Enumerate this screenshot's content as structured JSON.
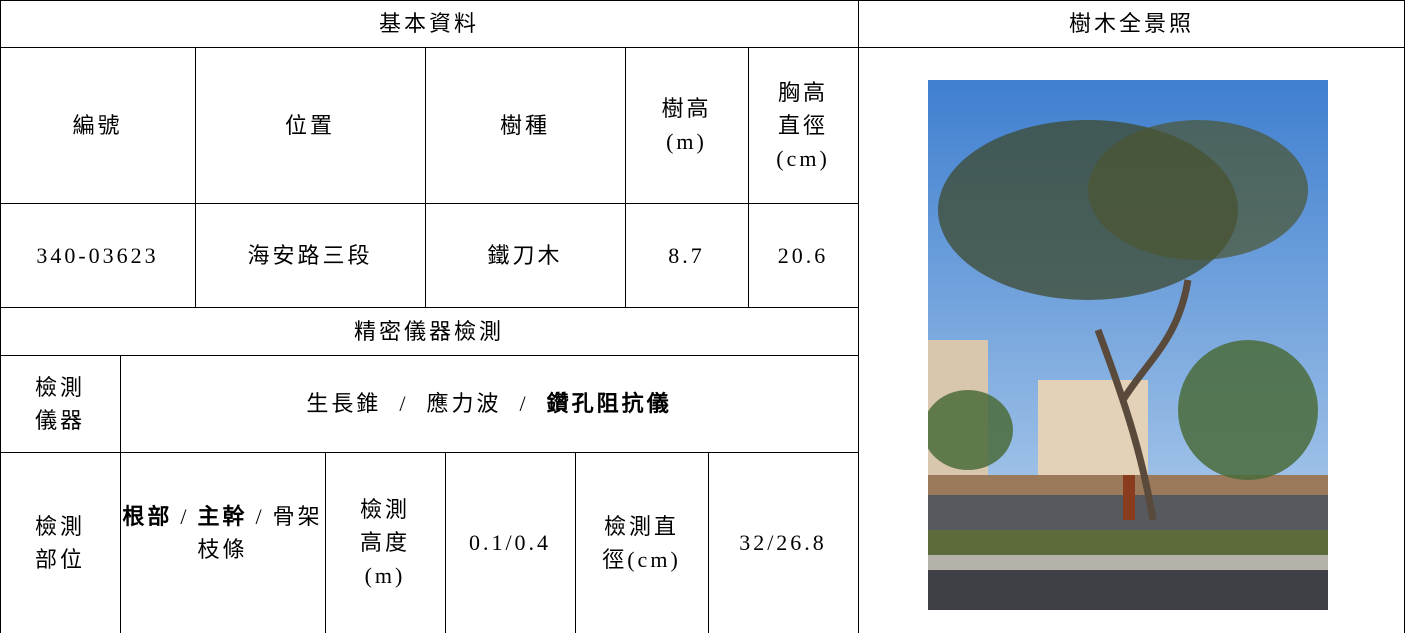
{
  "header": {
    "basic_info": "基本資料",
    "photo_title": "樹木全景照"
  },
  "basic": {
    "columns": [
      "編號",
      "位置",
      "樹種",
      "樹高\n(m)",
      "胸高\n直徑\n(cm)"
    ],
    "row": [
      "340-03623",
      "海安路三段",
      "鐵刀木",
      "8.7",
      "20.6"
    ]
  },
  "inspection": {
    "title": "精密儀器檢測",
    "instrument_label": "檢測\n儀器",
    "instruments": [
      "生長錐",
      "應力波",
      "鑽孔阻抗儀"
    ],
    "instruments_selected": [
      2
    ],
    "part_label": "檢測\n部位",
    "parts": [
      "根部",
      "主幹",
      "骨架枝條"
    ],
    "parts_selected": [
      0,
      1
    ],
    "separator": "/",
    "height_label": "檢測\n高度\n(m)",
    "height": "0.1/0.4",
    "diameter_label": "檢測直\n徑(cm)",
    "diameter": "32/26.8"
  }
}
